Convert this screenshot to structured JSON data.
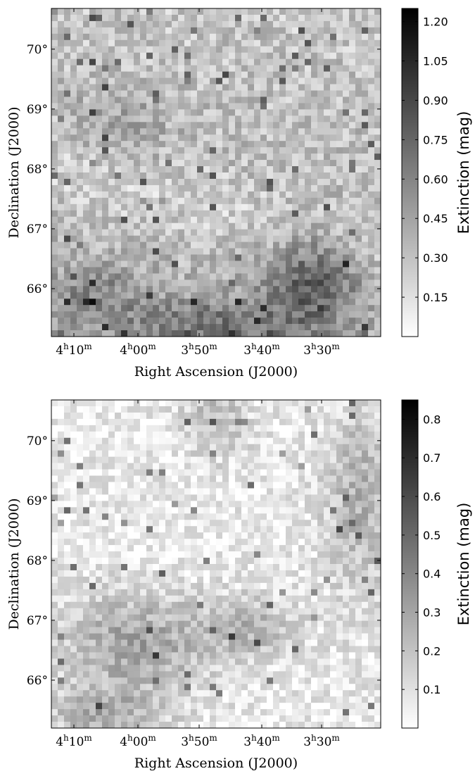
{
  "chart_data": [
    {
      "type": "heatmap",
      "xlabel": "Right Ascension (J2000)",
      "ylabel": "Declination (J2000)",
      "colorbar_label": "Extinction (mag)",
      "x_ticks": [
        {
          "value": "4h10m",
          "h": "4",
          "m": "10"
        },
        {
          "value": "4h00m",
          "h": "4",
          "m": "00"
        },
        {
          "value": "3h50m",
          "h": "3",
          "m": "50"
        },
        {
          "value": "3h40m",
          "h": "3",
          "m": "40"
        },
        {
          "value": "3h30m",
          "h": "3",
          "m": "30"
        }
      ],
      "y_ticks": [
        {
          "value": 70,
          "label": "70°"
        },
        {
          "value": 69,
          "label": "69°"
        },
        {
          "value": 68,
          "label": "68°"
        },
        {
          "value": 67,
          "label": "67°"
        },
        {
          "value": 66,
          "label": "66°"
        }
      ],
      "colorbar_ticks": [
        {
          "value": 1.2,
          "label": "1.20"
        },
        {
          "value": 1.05,
          "label": "1.05"
        },
        {
          "value": 0.9,
          "label": "0.90"
        },
        {
          "value": 0.75,
          "label": "0.75"
        },
        {
          "value": 0.6,
          "label": "0.60"
        },
        {
          "value": 0.45,
          "label": "0.45"
        },
        {
          "value": 0.3,
          "label": "0.30"
        },
        {
          "value": 0.15,
          "label": "0.15"
        }
      ],
      "color_range": [
        0.0,
        1.25
      ],
      "colormap": "gray_r",
      "grid": false
    },
    {
      "type": "heatmap",
      "xlabel": "Right Ascension (J2000)",
      "ylabel": "Declination (J2000)",
      "colorbar_label": "Extinction (mag)",
      "x_ticks": [
        {
          "value": "4h10m",
          "h": "4",
          "m": "10"
        },
        {
          "value": "4h00m",
          "h": "4",
          "m": "00"
        },
        {
          "value": "3h50m",
          "h": "3",
          "m": "50"
        },
        {
          "value": "3h40m",
          "h": "3",
          "m": "40"
        },
        {
          "value": "3h30m",
          "h": "3",
          "m": "30"
        }
      ],
      "y_ticks": [
        {
          "value": 70,
          "label": "70°"
        },
        {
          "value": 69,
          "label": "69°"
        },
        {
          "value": 68,
          "label": "68°"
        },
        {
          "value": 67,
          "label": "67°"
        },
        {
          "value": 66,
          "label": "66°"
        }
      ],
      "colorbar_ticks": [
        {
          "value": 0.8,
          "label": "0.8"
        },
        {
          "value": 0.7,
          "label": "0.7"
        },
        {
          "value": 0.6,
          "label": "0.6"
        },
        {
          "value": 0.5,
          "label": "0.5"
        },
        {
          "value": 0.4,
          "label": "0.4"
        },
        {
          "value": 0.3,
          "label": "0.3"
        },
        {
          "value": 0.2,
          "label": "0.2"
        },
        {
          "value": 0.1,
          "label": "0.1"
        }
      ],
      "color_range": [
        0.0,
        0.85
      ],
      "colormap": "gray_r",
      "grid": false
    }
  ]
}
